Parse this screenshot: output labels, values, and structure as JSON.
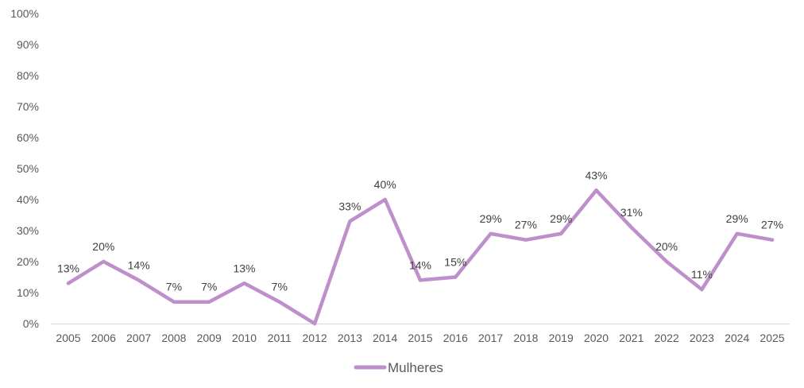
{
  "chart_data": {
    "type": "line",
    "categories": [
      "2005",
      "2006",
      "2007",
      "2008",
      "2009",
      "2010",
      "2011",
      "2012",
      "2013",
      "2014",
      "2015",
      "2016",
      "2017",
      "2018",
      "2019",
      "2020",
      "2021",
      "2022",
      "2023",
      "2024",
      "2025"
    ],
    "series": [
      {
        "name": "Mulheres",
        "values": [
          13,
          20,
          14,
          7,
          7,
          13,
          7,
          0,
          33,
          40,
          14,
          15,
          29,
          27,
          29,
          43,
          31,
          20,
          11,
          29,
          27
        ],
        "labels": [
          "13%",
          "20%",
          "14%",
          "7%",
          "7%",
          "13%",
          "7%",
          "",
          "33%",
          "40%",
          "14%",
          "15%",
          "29%",
          "27%",
          "29%",
          "43%",
          "31%",
          "20%",
          "11%",
          "29%",
          "27%"
        ],
        "color": "#BF8FCC"
      }
    ],
    "ylim": [
      0,
      100
    ],
    "yticks": [
      "0%",
      "10%",
      "20%",
      "30%",
      "40%",
      "50%",
      "60%",
      "70%",
      "80%",
      "90%",
      "100%"
    ],
    "grid": false,
    "legend_position": "bottom"
  }
}
